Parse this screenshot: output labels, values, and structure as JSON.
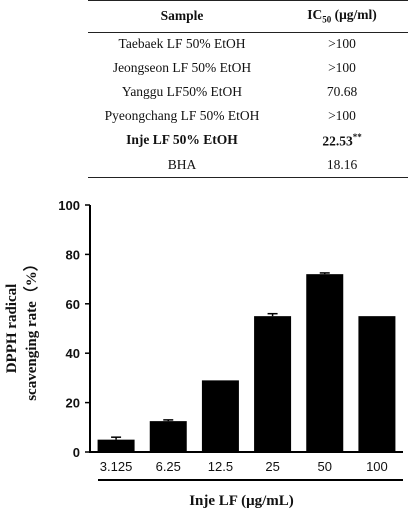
{
  "table": {
    "header": {
      "sample": "Sample",
      "ic_prefix": "IC",
      "ic_sub": "50",
      "ic_unit": " (μg/ml)"
    },
    "rows": [
      {
        "sample": "Taebaek LF 50% EtOH",
        "value": ">100",
        "mark": "",
        "bold": false
      },
      {
        "sample": "Jeongseon LF 50% EtOH",
        "value": ">100",
        "mark": "",
        "bold": false
      },
      {
        "sample": "Yanggu LF50% EtOH",
        "value": "70.68",
        "mark": "",
        "bold": false
      },
      {
        "sample": "Pyeongchang LF 50% EtOH",
        "value": ">100",
        "mark": "",
        "bold": false
      },
      {
        "sample": "Inje LF 50% EtOH",
        "value": "22.53",
        "mark": "**",
        "bold": true
      },
      {
        "sample": "BHA",
        "value": "18.16",
        "mark": "",
        "bold": false
      }
    ]
  },
  "chart_data": {
    "type": "bar",
    "title": "",
    "xlabel": "Inje LF (μg/mL)",
    "ylabel_line1": "DPPH radical",
    "ylabel_line2": "scavenging rate（%）",
    "categories": [
      "3.125",
      "6.25",
      "12.5",
      "25",
      "50",
      "100"
    ],
    "values": [
      5,
      12.5,
      29,
      55,
      72,
      55
    ],
    "errors": [
      1,
      0.5,
      0,
      1,
      0.5,
      0
    ],
    "ylim": [
      0,
      100
    ],
    "yticks": [
      "0",
      "20",
      "40",
      "60",
      "80",
      "100"
    ],
    "grid": false,
    "bar_color": "#000000"
  }
}
